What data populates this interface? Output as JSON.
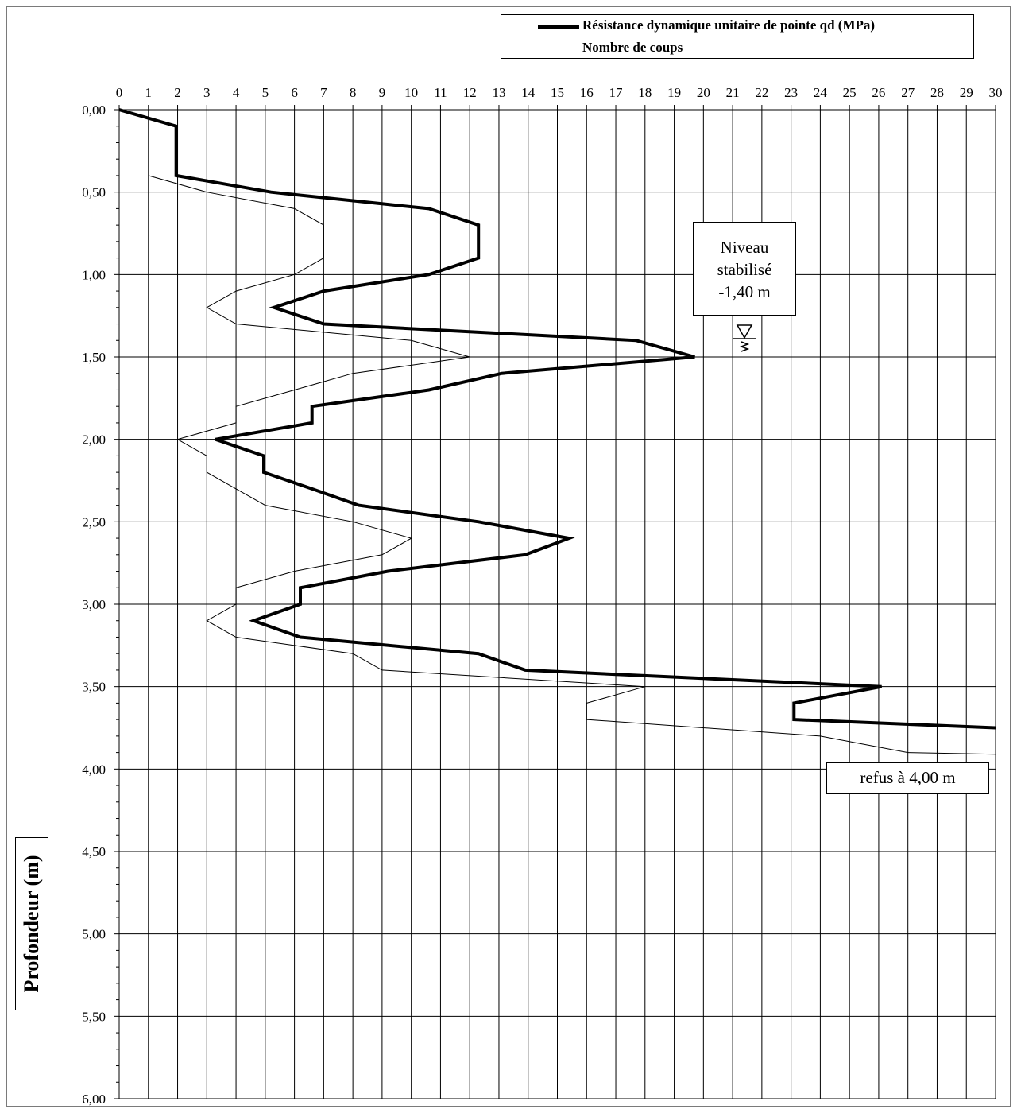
{
  "legend": {
    "series_1": "Résistance dynamique unitaire de pointe qd (MPa)",
    "series_2": "Nombre de coups"
  },
  "annotations": {
    "water_level": [
      "Niveau",
      "stabilisé",
      "-1,40 m"
    ],
    "refusal": "refus à 4,00 m"
  },
  "chart_data": {
    "type": "line",
    "orientation": "depth-down",
    "ylabel": "Profondeur (m)",
    "xlabel": "",
    "xlim": [
      0,
      30
    ],
    "ylim": [
      0,
      6
    ],
    "x_ticks": [
      "0",
      "1",
      "2",
      "3",
      "4",
      "5",
      "6",
      "7",
      "8",
      "9",
      "10",
      "11",
      "12",
      "13",
      "14",
      "15",
      "16",
      "17",
      "18",
      "19",
      "20",
      "21",
      "22",
      "23",
      "24",
      "25",
      "26",
      "27",
      "28",
      "29",
      "30"
    ],
    "y_ticks": [
      "0,00",
      "0,50",
      "1,00",
      "1,50",
      "2,00",
      "2,50",
      "3,00",
      "3,50",
      "4,00",
      "4,50",
      "5,00",
      "5,50",
      "6,00"
    ],
    "legend_position": "top-right",
    "grid": true,
    "series": [
      {
        "name": "Résistance dynamique unitaire de pointe qd (MPa)",
        "color": "#000000",
        "points": [
          [
            0,
            0.0
          ],
          [
            1.95,
            0.1
          ],
          [
            1.95,
            0.4
          ],
          [
            5.2,
            0.5
          ],
          [
            10.6,
            0.6
          ],
          [
            12.3,
            0.7
          ],
          [
            12.3,
            0.9
          ],
          [
            10.6,
            1.0
          ],
          [
            7.0,
            1.1
          ],
          [
            5.3,
            1.2
          ],
          [
            7.0,
            1.3
          ],
          [
            17.7,
            1.4
          ],
          [
            19.7,
            1.5
          ],
          [
            13.1,
            1.6
          ],
          [
            10.6,
            1.7
          ],
          [
            6.6,
            1.8
          ],
          [
            6.6,
            1.9
          ],
          [
            3.3,
            2.0
          ],
          [
            4.95,
            2.1
          ],
          [
            4.95,
            2.2
          ],
          [
            6.6,
            2.3
          ],
          [
            8.2,
            2.4
          ],
          [
            12.3,
            2.5
          ],
          [
            15.4,
            2.6
          ],
          [
            13.9,
            2.7
          ],
          [
            9.2,
            2.8
          ],
          [
            6.2,
            2.9
          ],
          [
            6.2,
            3.0
          ],
          [
            4.6,
            3.1
          ],
          [
            6.2,
            3.2
          ],
          [
            12.3,
            3.3
          ],
          [
            13.9,
            3.4
          ],
          [
            26.1,
            3.5
          ],
          [
            23.1,
            3.6
          ],
          [
            23.1,
            3.7
          ],
          [
            30,
            3.75
          ]
        ]
      },
      {
        "name": "Nombre de coups",
        "color": "#000000",
        "points": [
          [
            1,
            0.4
          ],
          [
            3,
            0.5
          ],
          [
            6,
            0.6
          ],
          [
            7,
            0.7
          ],
          [
            7,
            0.9
          ],
          [
            6,
            1.0
          ],
          [
            4,
            1.1
          ],
          [
            3,
            1.2
          ],
          [
            4,
            1.3
          ],
          [
            10,
            1.4
          ],
          [
            12,
            1.5
          ],
          [
            8,
            1.6
          ],
          [
            6,
            1.7
          ],
          [
            4,
            1.8
          ],
          [
            4,
            1.9
          ],
          [
            2,
            2.0
          ],
          [
            3,
            2.1
          ],
          [
            3,
            2.2
          ],
          [
            4,
            2.3
          ],
          [
            5,
            2.4
          ],
          [
            8,
            2.5
          ],
          [
            10,
            2.6
          ],
          [
            9,
            2.7
          ],
          [
            6,
            2.8
          ],
          [
            4,
            2.9
          ],
          [
            4,
            3.0
          ],
          [
            3,
            3.1
          ],
          [
            4,
            3.2
          ],
          [
            8,
            3.3
          ],
          [
            9,
            3.4
          ],
          [
            18,
            3.5
          ],
          [
            16,
            3.6
          ],
          [
            16,
            3.7
          ],
          [
            24,
            3.8
          ],
          [
            27,
            3.9
          ],
          [
            30,
            3.91
          ]
        ]
      }
    ]
  }
}
